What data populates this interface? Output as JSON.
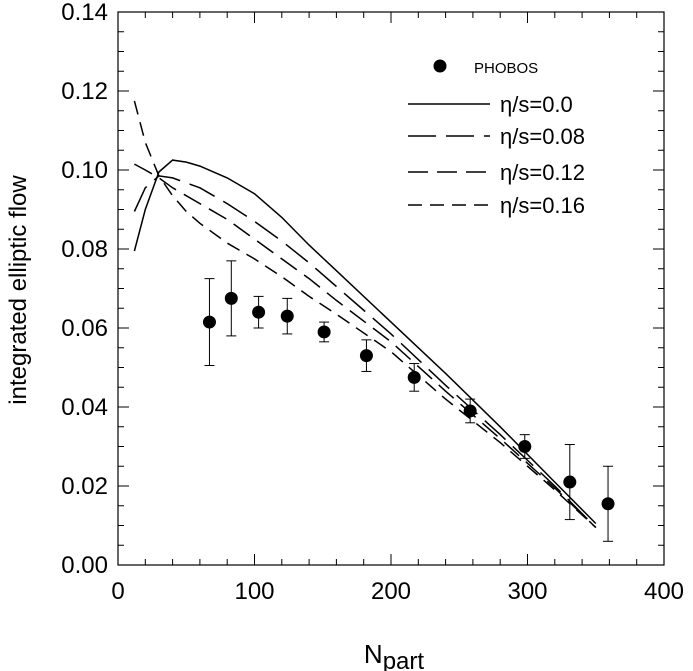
{
  "chart_data": {
    "type": "line",
    "title": "",
    "xlabel_main": "N",
    "xlabel_sub": "part",
    "ylabel": "integrated elliptic flow",
    "xlim": [
      0,
      400
    ],
    "ylim": [
      0.0,
      0.14
    ],
    "xticks": [
      0,
      100,
      200,
      300,
      400
    ],
    "xtick_labels": [
      "0",
      "100",
      "200",
      "300",
      "400"
    ],
    "yticks": [
      0.0,
      0.02,
      0.04,
      0.06,
      0.08,
      0.1,
      0.12,
      0.14
    ],
    "ytick_labels": [
      "0.00",
      "0.02",
      "0.04",
      "0.06",
      "0.08",
      "0.10",
      "0.12",
      "0.14"
    ],
    "grid": false,
    "legend_position": "top-right",
    "series": [
      {
        "name": "η/s=0.0",
        "style": "solid",
        "x": [
          12,
          20,
          30,
          40,
          50,
          60,
          80,
          100,
          120,
          140,
          160,
          200,
          240,
          280,
          320,
          350
        ],
        "y": [
          0.0795,
          0.09,
          0.0995,
          0.1025,
          0.102,
          0.101,
          0.098,
          0.094,
          0.088,
          0.081,
          0.0745,
          0.0615,
          0.0485,
          0.035,
          0.021,
          0.0105
        ]
      },
      {
        "name": "η/s=0.08",
        "style": "long-dash",
        "x": [
          12,
          20,
          30,
          40,
          60,
          80,
          100,
          120,
          140,
          160,
          200,
          240,
          280,
          320,
          350
        ],
        "y": [
          0.0895,
          0.0955,
          0.0985,
          0.098,
          0.0955,
          0.0915,
          0.087,
          0.082,
          0.0765,
          0.0705,
          0.0585,
          0.0455,
          0.033,
          0.02,
          0.0095
        ]
      },
      {
        "name": "η/s=0.12",
        "style": "medium-dash",
        "x": [
          12,
          20,
          30,
          40,
          60,
          80,
          100,
          120,
          140,
          160,
          200,
          240,
          280,
          320,
          350
        ],
        "y": [
          0.1015,
          0.1,
          0.098,
          0.0955,
          0.0915,
          0.0875,
          0.0825,
          0.0775,
          0.0725,
          0.067,
          0.0565,
          0.044,
          0.032,
          0.0195,
          0.0095
        ]
      },
      {
        "name": "η/s=0.16",
        "style": "short-dash",
        "x": [
          12,
          20,
          30,
          40,
          50,
          60,
          80,
          100,
          120,
          140,
          160,
          200,
          240,
          280,
          320,
          350
        ],
        "y": [
          0.1175,
          0.107,
          0.0985,
          0.0935,
          0.0895,
          0.0865,
          0.0815,
          0.0775,
          0.073,
          0.068,
          0.0635,
          0.054,
          0.042,
          0.031,
          0.019,
          0.0095
        ]
      }
    ],
    "points": {
      "name": "PHOBOS",
      "x": [
        67,
        83,
        103,
        124,
        151,
        182,
        217,
        258,
        298,
        331,
        359
      ],
      "y": [
        0.0615,
        0.0675,
        0.064,
        0.063,
        0.059,
        0.053,
        0.0475,
        0.039,
        0.03,
        0.021,
        0.0155
      ],
      "err": [
        0.011,
        0.0095,
        0.004,
        0.0045,
        0.0025,
        0.004,
        0.0035,
        0.003,
        0.003,
        0.0095,
        0.0095
      ]
    }
  }
}
